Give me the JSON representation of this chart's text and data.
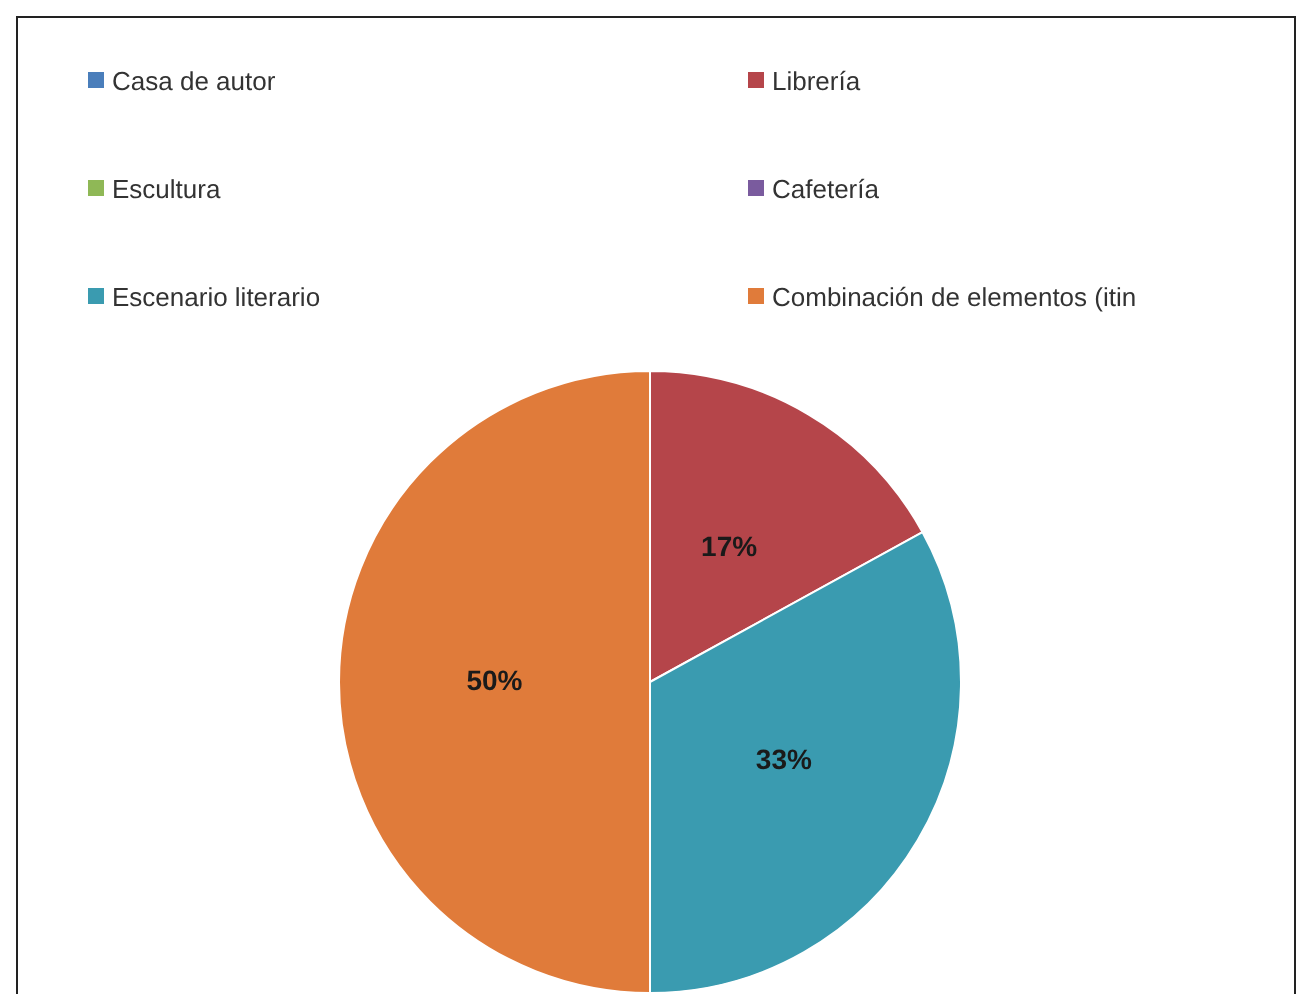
{
  "chart_data": {
    "type": "pie",
    "categories": [
      "Casa de autor",
      "Librería",
      "Escultura",
      "Cafetería",
      "Escenario literario",
      "Combinación de elementos (itin"
    ],
    "values": [
      0,
      17,
      0,
      0,
      33,
      50
    ],
    "colors": [
      "#4a7ebb",
      "#b5454a",
      "#8fb856",
      "#7a5b9e",
      "#3a9bb0",
      "#e07b3a"
    ],
    "value_labels": [
      null,
      "17%",
      null,
      null,
      "33%",
      "50%"
    ],
    "legend": "top"
  }
}
